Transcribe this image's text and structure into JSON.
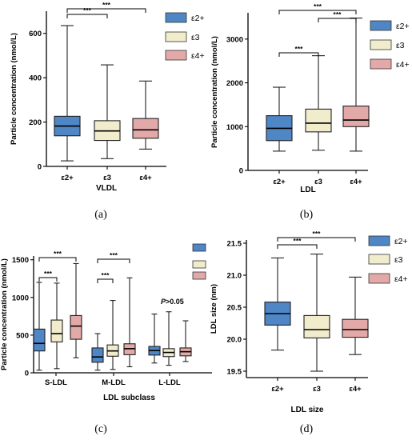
{
  "colors": {
    "e2": "#4f86c6",
    "e3": "#f0eccc",
    "e4": "#e3a9a9"
  },
  "legend": [
    "ε2+",
    "ε3",
    "ε4+"
  ],
  "chart_data": [
    {
      "panel": "(a)",
      "type": "box",
      "xlabel": "VLDL",
      "ylabel": "Particle concentration (nmol/L)",
      "ylim": [
        0,
        700
      ],
      "yticks": [
        0,
        200,
        400,
        600
      ],
      "categories": [
        "ε2+",
        "ε3",
        "ε4+"
      ],
      "boxes": [
        {
          "name": "ε2+",
          "min": 25,
          "q1": 138,
          "median": 182,
          "q3": 226,
          "max": 635
        },
        {
          "name": "ε3",
          "min": 35,
          "q1": 117,
          "median": 160,
          "q3": 206,
          "max": 458
        },
        {
          "name": "ε4+",
          "min": 78,
          "q1": 127,
          "median": 165,
          "q3": 216,
          "max": 385
        }
      ],
      "significance": [
        {
          "from": 0,
          "to": 1,
          "label": "***"
        },
        {
          "from": 0,
          "to": 2,
          "label": "***"
        }
      ]
    },
    {
      "panel": "(b)",
      "type": "box",
      "xlabel": "LDL",
      "ylabel": "Particle concentration (nmol/L)",
      "ylim": [
        0,
        3600
      ],
      "yticks": [
        0,
        1000,
        2000,
        3000
      ],
      "categories": [
        "ε2+",
        "ε3",
        "ε4+"
      ],
      "boxes": [
        {
          "name": "ε2+",
          "min": 440,
          "q1": 680,
          "median": 960,
          "q3": 1250,
          "max": 1900
        },
        {
          "name": "ε3",
          "min": 460,
          "q1": 880,
          "median": 1080,
          "q3": 1400,
          "max": 2620
        },
        {
          "name": "ε4+",
          "min": 440,
          "q1": 1000,
          "median": 1150,
          "q3": 1470,
          "max": 3480
        }
      ],
      "significance": [
        {
          "from": 0,
          "to": 1,
          "label": "***"
        },
        {
          "from": 1,
          "to": 2,
          "label": "***"
        },
        {
          "from": 0,
          "to": 2,
          "label": "***"
        }
      ]
    },
    {
      "panel": "(c)",
      "type": "box",
      "xlabel": "LDL subclass",
      "ylabel": "Particle concentration (nmol/L)",
      "ylim": [
        0,
        1550
      ],
      "yticks": [
        0,
        500,
        1000,
        1500
      ],
      "categories": [
        "S-LDL",
        "M-LDL",
        "L-LDL"
      ],
      "annotation": "P>0.05",
      "boxes": [
        {
          "group": 0,
          "name": "ε2+",
          "min": 35,
          "q1": 290,
          "median": 390,
          "q3": 580,
          "max": 1200
        },
        {
          "group": 0,
          "name": "ε3",
          "min": 55,
          "q1": 410,
          "median": 520,
          "q3": 700,
          "max": 1190
        },
        {
          "group": 0,
          "name": "ε4+",
          "min": 200,
          "q1": 445,
          "median": 620,
          "q3": 760,
          "max": 1450
        },
        {
          "group": 1,
          "name": "ε2+",
          "min": 35,
          "q1": 140,
          "median": 210,
          "q3": 330,
          "max": 520
        },
        {
          "group": 1,
          "name": "ε3",
          "min": 45,
          "q1": 220,
          "median": 290,
          "q3": 370,
          "max": 960
        },
        {
          "group": 1,
          "name": "ε4+",
          "min": 80,
          "q1": 240,
          "median": 320,
          "q3": 385,
          "max": 1260
        },
        {
          "group": 2,
          "name": "ε2+",
          "min": 130,
          "q1": 235,
          "median": 295,
          "q3": 350,
          "max": 780
        },
        {
          "group": 2,
          "name": "ε3",
          "min": 100,
          "q1": 215,
          "median": 270,
          "q3": 320,
          "max": 810
        },
        {
          "group": 2,
          "name": "ε4+",
          "min": 150,
          "q1": 225,
          "median": 280,
          "q3": 330,
          "max": 690
        }
      ],
      "significance": [
        {
          "group": 0,
          "from": 0,
          "to": 1,
          "label": "***"
        },
        {
          "group": 0,
          "from": 0,
          "to": 2,
          "label": "***"
        },
        {
          "group": 1,
          "from": 0,
          "to": 1,
          "label": "***"
        },
        {
          "group": 1,
          "from": 0,
          "to": 2,
          "label": "***"
        }
      ]
    },
    {
      "panel": "(d)",
      "type": "box",
      "xlabel": "LDL size",
      "ylabel": "LDL size (nm)",
      "ylim": [
        19.4,
        21.55
      ],
      "yticks": [
        19.5,
        20.0,
        20.5,
        21.0,
        21.5
      ],
      "categories": [
        "ε2+",
        "ε3",
        "ε4+"
      ],
      "boxes": [
        {
          "name": "ε2+",
          "min": 19.83,
          "q1": 20.22,
          "median": 20.4,
          "q3": 20.58,
          "max": 21.27
        },
        {
          "name": "ε3",
          "min": 19.5,
          "q1": 20.02,
          "median": 20.15,
          "q3": 20.37,
          "max": 21.33
        },
        {
          "name": "ε4+",
          "min": 19.76,
          "q1": 20.03,
          "median": 20.15,
          "q3": 20.31,
          "max": 20.97
        }
      ],
      "significance": [
        {
          "from": 0,
          "to": 1,
          "label": "***"
        },
        {
          "from": 0,
          "to": 2,
          "label": "***"
        }
      ]
    }
  ]
}
